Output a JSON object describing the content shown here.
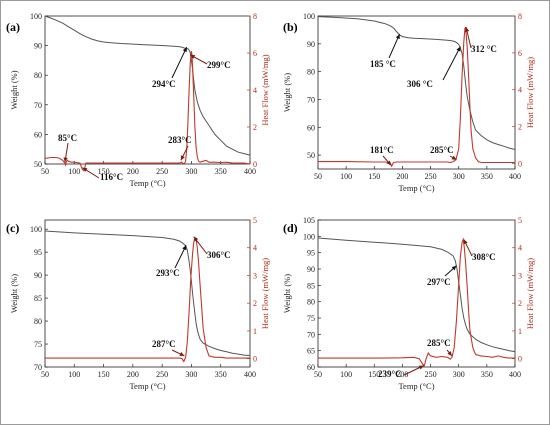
{
  "chart_data": [
    {
      "type": "line",
      "panel": "(a)",
      "xlabel": "Temp (°C)",
      "ylabel": "Weight (%)",
      "y2label": "Heat Flow (mW/mg)",
      "xlim": [
        50,
        400
      ],
      "xticks": [
        "50",
        "100",
        "150",
        "200",
        "250",
        "300",
        "350",
        "400"
      ],
      "ylim": [
        50,
        100
      ],
      "yticks": [
        "50",
        "60",
        "70",
        "80",
        "90",
        "100"
      ],
      "y2lim": [
        0,
        8
      ],
      "y2ticks": [
        "0",
        "2",
        "4",
        "6",
        "8"
      ],
      "colors": {
        "weight": "#555555",
        "heat": "#c0392b"
      },
      "series": [
        {
          "axis": "left",
          "x": [
            50,
            60,
            70,
            80,
            90,
            100,
            110,
            120,
            130,
            140,
            150,
            160,
            180,
            200,
            220,
            240,
            260,
            270,
            280,
            285,
            288,
            290,
            292,
            294,
            296,
            298,
            300,
            302,
            304,
            306,
            308,
            310,
            315,
            320,
            330,
            340,
            350,
            360,
            370,
            380,
            390,
            400
          ],
          "values": [
            100,
            99.3,
            98.5,
            97.6,
            96.4,
            95.2,
            94,
            93,
            92.2,
            91.6,
            91.2,
            91,
            90.7,
            90.5,
            90.3,
            90.1,
            89.9,
            89.8,
            89.6,
            89.4,
            89.2,
            89.1,
            89,
            89,
            88.5,
            87.5,
            85,
            82,
            78,
            75,
            73,
            71,
            68,
            66,
            63,
            60,
            58,
            56,
            55,
            54,
            53.5,
            53
          ]
        },
        {
          "axis": "right",
          "x": [
            50,
            60,
            70,
            75,
            80,
            84,
            85,
            86,
            88,
            90,
            95,
            100,
            110,
            112,
            114,
            116,
            118,
            120,
            130,
            150,
            200,
            250,
            270,
            280,
            283,
            285,
            288,
            290,
            292,
            294,
            296,
            298,
            300,
            301,
            302,
            304,
            306,
            308,
            310,
            312,
            315,
            320,
            325,
            330,
            340,
            350,
            360,
            370,
            380,
            390,
            400
          ],
          "values": [
            0.3,
            0.35,
            0.35,
            0.3,
            0.2,
            0.05,
            -0.05,
            0.1,
            0.2,
            0.15,
            0.1,
            0.1,
            0.05,
            -0.15,
            -0.3,
            -0.35,
            -0.2,
            0.05,
            0.05,
            0.05,
            0.05,
            0.05,
            0.05,
            0.05,
            0.1,
            0.05,
            0.02,
            0.15,
            0.8,
            2.2,
            4,
            5.5,
            6.1,
            5.9,
            5.2,
            3.6,
            2,
            0.9,
            0.4,
            0.15,
            0.1,
            0.15,
            0.2,
            0.1,
            0.1,
            0.08,
            0.1,
            0.05,
            0.05,
            0.05,
            0
          ]
        }
      ],
      "annotations": [
        "85°C",
        "116°C",
        "283°C",
        "294°C",
        "299°C"
      ]
    },
    {
      "type": "line",
      "panel": "(b)",
      "xlabel": "Temp (°C)",
      "ylabel": "Weight (%)",
      "y2label": "Heat Flow (mW/mg)",
      "xlim": [
        50,
        400
      ],
      "xticks": [
        "50",
        "100",
        "150",
        "200",
        "250",
        "300",
        "350",
        "400"
      ],
      "ylim": [
        45,
        100
      ],
      "yticks": [
        "50",
        "60",
        "70",
        "80",
        "90",
        "100"
      ],
      "y2lim": [
        -0.3,
        8
      ],
      "y2ticks": [
        "0",
        "2",
        "4",
        "6",
        "8"
      ],
      "colors": {
        "weight": "#555555",
        "heat": "#c0392b"
      },
      "series": [
        {
          "axis": "left",
          "x": [
            50,
            80,
            120,
            150,
            170,
            180,
            185,
            190,
            195,
            200,
            210,
            220,
            240,
            260,
            280,
            290,
            295,
            300,
            303,
            306,
            309,
            312,
            315,
            320,
            325,
            330,
            340,
            350,
            360,
            370,
            380,
            390,
            400
          ],
          "values": [
            99.8,
            99.5,
            99,
            98.2,
            97.2,
            96.3,
            95.5,
            94.3,
            93.2,
            92.6,
            92.2,
            92,
            91.8,
            91.6,
            91.3,
            91,
            90.6,
            89.8,
            88.5,
            86.5,
            82,
            76,
            71,
            66,
            62,
            59,
            57,
            55.5,
            54.5,
            53.8,
            53.2,
            52.5,
            52
          ]
        },
        {
          "axis": "right",
          "x": [
            50,
            100,
            150,
            170,
            178,
            181,
            184,
            190,
            200,
            250,
            280,
            285,
            290,
            295,
            300,
            303,
            306,
            309,
            311,
            312,
            313,
            315,
            318,
            320,
            322,
            325,
            330,
            335,
            340,
            350,
            360,
            380,
            400
          ],
          "values": [
            0.1,
            0.1,
            0.08,
            0.08,
            0.03,
            -0.15,
            0.05,
            0.08,
            0.08,
            0.08,
            0.08,
            0.05,
            0.1,
            0.2,
            0.8,
            2.5,
            4.8,
            6.6,
            7.3,
            7.4,
            7.1,
            6.3,
            4.5,
            3,
            1.8,
            0.8,
            0.3,
            0.1,
            0.05,
            0.05,
            0.05,
            0.05,
            0.05
          ]
        }
      ],
      "annotations": [
        "185 °C",
        "181°C",
        "285°C",
        "306 °C",
        "312 °C"
      ]
    },
    {
      "type": "line",
      "panel": "(c)",
      "xlabel": "Temp (°C)",
      "ylabel": "Weight (%)",
      "y2label": "Heat Flow (mW/mg)",
      "xlim": [
        50,
        400
      ],
      "xticks": [
        "50",
        "100",
        "150",
        "200",
        "250",
        "300",
        "350",
        "400"
      ],
      "ylim": [
        70,
        102
      ],
      "yticks": [
        "70",
        "75",
        "80",
        "85",
        "90",
        "95",
        "100"
      ],
      "y2lim": [
        -0.3,
        5
      ],
      "y2ticks": [
        "0",
        "1",
        "2",
        "3",
        "4",
        "5"
      ],
      "colors": {
        "weight": "#555555",
        "heat": "#c0392b"
      },
      "series": [
        {
          "axis": "left",
          "x": [
            50,
            100,
            150,
            200,
            250,
            270,
            280,
            285,
            290,
            293,
            296,
            299,
            302,
            305,
            308,
            311,
            315,
            320,
            330,
            340,
            350,
            360,
            370,
            380,
            390,
            400
          ],
          "values": [
            99.6,
            99.2,
            98.9,
            98.6,
            98.2,
            97.8,
            97.4,
            97,
            96.4,
            95.5,
            93,
            90,
            86,
            82.5,
            79.5,
            77.5,
            76,
            75.2,
            74.5,
            74,
            73.6,
            73.3,
            73,
            72.8,
            72.6,
            72.5
          ]
        },
        {
          "axis": "right",
          "x": [
            50,
            100,
            150,
            200,
            250,
            280,
            284,
            287,
            290,
            293,
            296,
            299,
            302,
            304,
            306,
            308,
            310,
            312,
            315,
            318,
            320,
            325,
            330,
            340,
            350,
            360,
            380,
            400
          ],
          "values": [
            0.02,
            0.02,
            0.02,
            0.02,
            0.02,
            0.02,
            0,
            -0.1,
            0.05,
            0.6,
            1.7,
            2.9,
            3.8,
            4.2,
            4.35,
            4.3,
            4,
            3.5,
            2.6,
            1.7,
            1.1,
            0.4,
            0.1,
            0.05,
            0.05,
            0.02,
            0.02,
            0.02
          ]
        }
      ],
      "annotations": [
        "293°C",
        "306°C",
        "287°C"
      ]
    },
    {
      "type": "line",
      "panel": "(d)",
      "xlabel": "Temp (°C)",
      "ylabel": "Weight (%)",
      "y2label": "Heat Flow (mW/mg)",
      "xlim": [
        50,
        400
      ],
      "xticks": [
        "50",
        "100",
        "150",
        "200",
        "250",
        "300",
        "350",
        "400"
      ],
      "ylim": [
        60,
        105
      ],
      "yticks": [
        "60",
        "65",
        "70",
        "75",
        "80",
        "85",
        "90",
        "95",
        "100",
        "105"
      ],
      "y2lim": [
        -0.3,
        5
      ],
      "y2ticks": [
        "0",
        "1",
        "2",
        "3",
        "4",
        "5"
      ],
      "colors": {
        "weight": "#555555",
        "heat": "#c0392b"
      },
      "series": [
        {
          "axis": "left",
          "x": [
            50,
            100,
            150,
            200,
            250,
            270,
            280,
            290,
            294,
            297,
            300,
            303,
            306,
            309,
            312,
            315,
            320,
            330,
            340,
            350,
            360,
            370,
            380,
            390,
            400
          ],
          "values": [
            99.5,
            98.8,
            98.2,
            97.6,
            96.8,
            96,
            95.2,
            94,
            92.5,
            90,
            86,
            82,
            78,
            75,
            73,
            71.5,
            70,
            68.5,
            67.5,
            66.8,
            66.2,
            65.8,
            65.4,
            65,
            64.7
          ]
        },
        {
          "axis": "right",
          "x": [
            50,
            150,
            200,
            220,
            230,
            236,
            239,
            242,
            246,
            250,
            260,
            270,
            280,
            285,
            288,
            292,
            296,
            300,
            303,
            306,
            308,
            310,
            312,
            315,
            318,
            320,
            325,
            330,
            340,
            350,
            360,
            370,
            380,
            390,
            400
          ],
          "values": [
            0.02,
            0.02,
            0.03,
            0.05,
            0,
            -0.2,
            -0.25,
            0,
            0.2,
            0.1,
            0.05,
            0.08,
            0.05,
            -0.02,
            0.05,
            0.4,
            1.4,
            2.7,
            3.7,
            4.2,
            4.3,
            4,
            3.5,
            2.6,
            1.6,
            1,
            0.4,
            0.15,
            0.1,
            0.08,
            0.05,
            0.1,
            0.05,
            0.02,
            0.02
          ]
        }
      ],
      "annotations": [
        "297°C",
        "308°C",
        "285°C",
        "239°C"
      ]
    }
  ]
}
